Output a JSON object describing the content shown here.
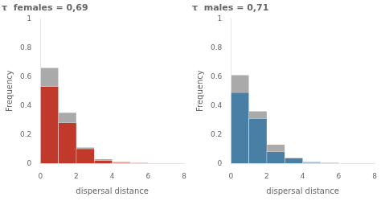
{
  "chart_data": [
    {
      "type": "histogram",
      "title": "τ  females = 0,69",
      "xlabel": "dispersal distance",
      "ylabel": "Frequency",
      "bins": [
        0,
        1,
        2,
        3,
        4,
        5,
        6
      ],
      "series": [
        {
          "color": "#aaaaaa",
          "values": [
            0.66,
            0.35,
            0.11,
            0.03,
            0.01,
            0.003
          ]
        },
        {
          "color": "#c0392b",
          "values": [
            0.53,
            0.28,
            0.1,
            0.02,
            0.005,
            0.002
          ]
        }
      ],
      "xlim": [
        0,
        8
      ],
      "xticks": [
        0,
        2,
        4,
        6,
        8
      ],
      "ylim": [
        0,
        1
      ],
      "yticks": [
        0,
        0.2,
        0.4,
        0.6,
        0.8,
        1
      ],
      "grid": false
    },
    {
      "type": "histogram",
      "title": "τ  males = 0,71",
      "xlabel": "dispersal distance",
      "ylabel": "Frequency",
      "bins": [
        0,
        1,
        2,
        3,
        4,
        5,
        6
      ],
      "series": [
        {
          "color": "#aaaaaa",
          "values": [
            0.61,
            0.36,
            0.13,
            0.04,
            0.01,
            0.003
          ]
        },
        {
          "color": "#4a7fa5",
          "values": [
            0.49,
            0.31,
            0.08,
            0.035,
            0.005,
            0.002
          ]
        }
      ],
      "xlim": [
        0,
        8
      ],
      "xticks": [
        0,
        2,
        4,
        6,
        8
      ],
      "ylim": [
        0,
        1
      ],
      "yticks": [
        0,
        0.2,
        0.4,
        0.6,
        0.8,
        1
      ],
      "grid": false
    }
  ]
}
